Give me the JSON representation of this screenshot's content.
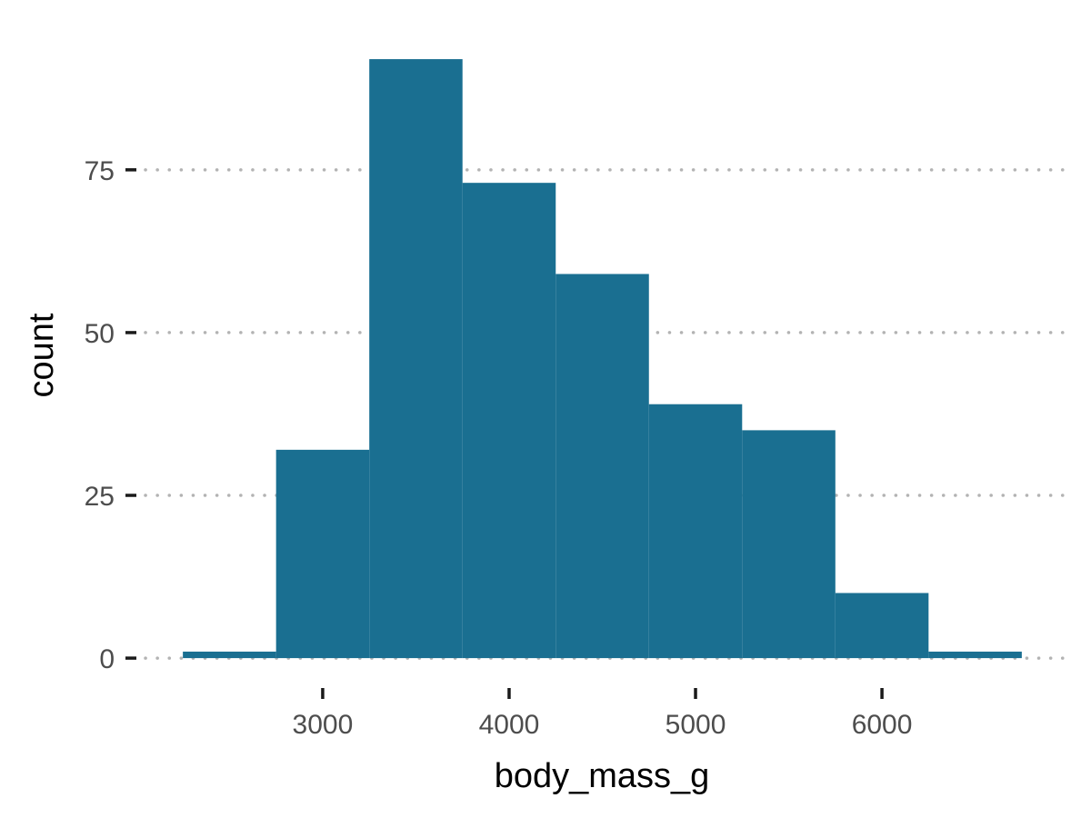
{
  "chart_data": {
    "type": "bar",
    "subtype": "histogram",
    "title": "",
    "xlabel": "body_mass_g",
    "ylabel": "count",
    "bin_width": 500,
    "bins": [
      {
        "x0": 2250,
        "x1": 2750,
        "count": 1
      },
      {
        "x0": 2750,
        "x1": 3250,
        "count": 32
      },
      {
        "x0": 3250,
        "x1": 3750,
        "count": 92
      },
      {
        "x0": 3750,
        "x1": 4250,
        "count": 73
      },
      {
        "x0": 4250,
        "x1": 4750,
        "count": 59
      },
      {
        "x0": 4750,
        "x1": 5250,
        "count": 39
      },
      {
        "x0": 5250,
        "x1": 5750,
        "count": 35
      },
      {
        "x0": 5750,
        "x1": 6250,
        "count": 10
      },
      {
        "x0": 6250,
        "x1": 6750,
        "count": 1
      }
    ],
    "xlim": [
      2025,
      6975
    ],
    "ylim": [
      -2.5,
      95.5
    ],
    "x_ticks": [
      "3000",
      "4000",
      "5000",
      "6000"
    ],
    "y_ticks": [
      "0",
      "25",
      "50",
      "75"
    ],
    "grid": "horizontal dotted",
    "bar_color": "#1a6f91",
    "grid_color": "#b3b3b3"
  }
}
